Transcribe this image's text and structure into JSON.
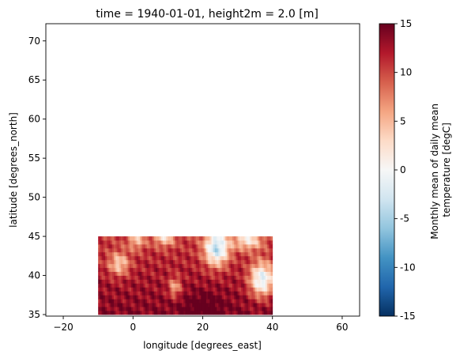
{
  "chart_data": {
    "type": "heatmap",
    "title": "time = 1940-01-01, height2m = 2.0 [m]",
    "xlabel": "longitude [degrees_east]",
    "ylabel": "latitude [degrees_north]",
    "xlim": [
      -25,
      65
    ],
    "ylim": [
      34.8,
      72.2
    ],
    "xticks": [
      -20,
      0,
      20,
      40,
      60
    ],
    "yticks": [
      35,
      40,
      45,
      50,
      55,
      60,
      65,
      70
    ],
    "data_extent": {
      "lon": [
        -10,
        40
      ],
      "lat": [
        35,
        45
      ]
    },
    "colorbar": {
      "label": "Monthly mean of daily mean temperature [degC]",
      "label_lines": [
        "Monthly mean of daily mean",
        "temperature [degC]"
      ],
      "vmin": -15,
      "vmax": 15,
      "ticks": [
        -15,
        -10,
        -5,
        0,
        5,
        10,
        15
      ],
      "cmap": "RdBu_r",
      "colors": [
        "#053061",
        "#2166ac",
        "#4393c3",
        "#92c5de",
        "#d1e5f0",
        "#f7f7f7",
        "#fddbc7",
        "#f4a582",
        "#d6604d",
        "#b2182b",
        "#67001f"
      ]
    },
    "grid": false
  }
}
